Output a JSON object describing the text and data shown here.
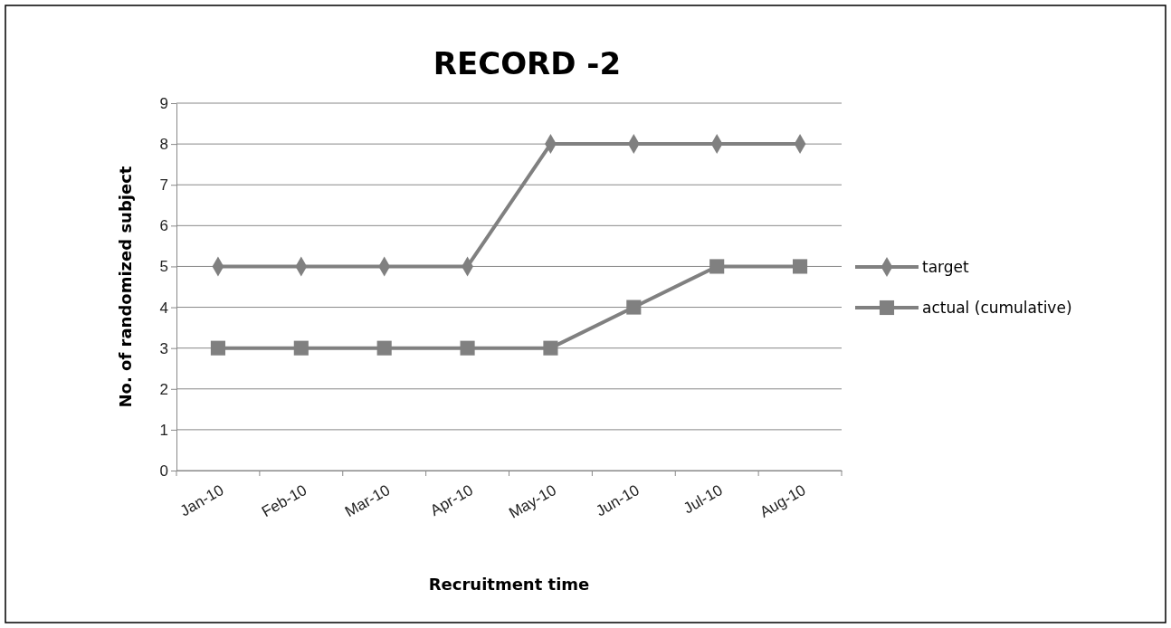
{
  "chart_data": {
    "type": "line",
    "title": "RECORD -2",
    "xlabel": "Recruitment time",
    "ylabel": "No. of randomized subject",
    "categories": [
      "Jan-10",
      "Feb-10",
      "Mar-10",
      "Apr-10",
      "May-10",
      "Jun-10",
      "Jul-10",
      "Aug-10"
    ],
    "series": [
      {
        "name": "target",
        "color": "#808080",
        "marker": "diamond",
        "values": [
          5,
          5,
          5,
          5,
          8,
          8,
          8,
          8
        ]
      },
      {
        "name": "actual (cumulative)",
        "color": "#808080",
        "marker": "square",
        "values": [
          3,
          3,
          3,
          3,
          3,
          4,
          5,
          5
        ]
      }
    ],
    "ylim": [
      0,
      9
    ],
    "yticks": [
      0,
      1,
      2,
      3,
      4,
      5,
      6,
      7,
      8,
      9
    ],
    "grid": "y",
    "legend": "right",
    "line_style": "solid"
  }
}
